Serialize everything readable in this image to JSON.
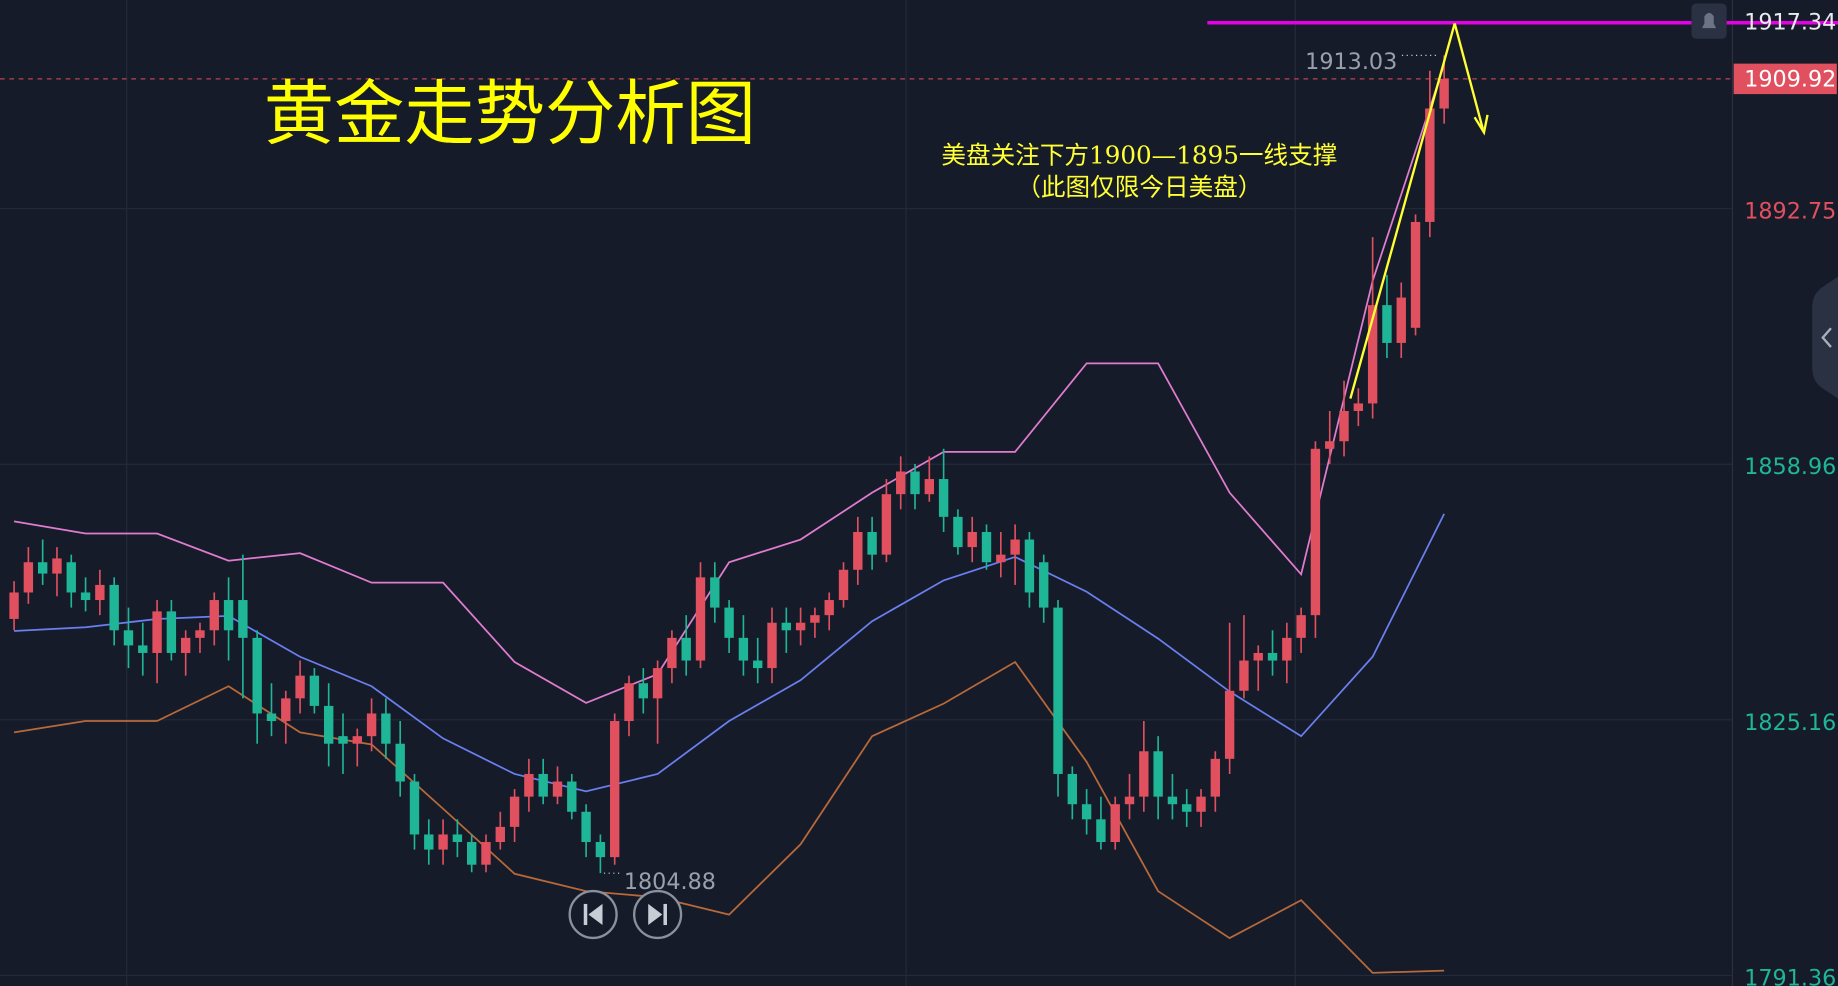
{
  "chart_data": {
    "type": "candlestick",
    "title": "黄金走势分析图",
    "annotations": [
      "美盘关注下方1900—1895一线支撑",
      "（此图仅限今日美盘）"
    ],
    "ylim": [
      1789.96,
      1920.35
    ],
    "yticks": [
      1791.36,
      1825.16,
      1858.96,
      1892.75
    ],
    "ytick_colors": [
      "#1fb597",
      "#1fb597",
      "#1fb597",
      "#e0505f"
    ],
    "grid": true,
    "up_color": "#e0505f",
    "down_color": "#1fb597",
    "candles": {
      "open": [
        1838.5,
        1842,
        1846,
        1844.5,
        1846,
        1842,
        1841,
        1843,
        1837,
        1835,
        1834,
        1839.5,
        1834,
        1836,
        1837,
        1841,
        1841,
        1836,
        1826,
        1825,
        1828,
        1831,
        1827,
        1823,
        1822,
        1823,
        1826,
        1822,
        1817,
        1810,
        1808,
        1810,
        1809,
        1806,
        1809,
        1811,
        1815,
        1818,
        1815,
        1817,
        1813,
        1809,
        1807,
        1825,
        1830,
        1828,
        1832,
        1836,
        1833,
        1844,
        1840,
        1836,
        1833,
        1832,
        1838,
        1837,
        1838,
        1839,
        1841,
        1845,
        1850,
        1847,
        1855,
        1858,
        1855,
        1857,
        1852,
        1848,
        1850,
        1846,
        1847,
        1849,
        1846,
        1840,
        1818,
        1814,
        1812,
        1809,
        1814,
        1815,
        1821,
        1815,
        1814,
        1813,
        1815,
        1820,
        1829,
        1833,
        1834,
        1833,
        1836,
        1839,
        1861,
        1862,
        1866,
        1867,
        1880,
        1875,
        1877,
        1891,
        1906
      ],
      "high": [
        1843.5,
        1848,
        1849,
        1848,
        1847,
        1844,
        1845,
        1844,
        1840,
        1838,
        1841,
        1841,
        1837,
        1838,
        1842,
        1844,
        1847,
        1837,
        1830,
        1829,
        1833,
        1832,
        1830,
        1826,
        1824,
        1828,
        1828,
        1825,
        1818,
        1812,
        1812,
        1812,
        1810,
        1810,
        1813,
        1816,
        1820,
        1820,
        1819,
        1818,
        1814,
        1810,
        1826,
        1831,
        1832,
        1833,
        1837,
        1839,
        1846,
        1846,
        1841,
        1839,
        1836,
        1840,
        1840,
        1840,
        1840,
        1842,
        1846,
        1852,
        1852,
        1857,
        1860,
        1859,
        1860,
        1861,
        1853,
        1852,
        1851,
        1850,
        1851,
        1850,
        1847,
        1841,
        1819,
        1816,
        1815,
        1815,
        1818,
        1825,
        1823,
        1818,
        1816,
        1816,
        1821,
        1838,
        1839,
        1835,
        1837,
        1838,
        1840,
        1862,
        1866,
        1870,
        1869,
        1889,
        1884,
        1883,
        1892,
        1911,
        1913.03
      ],
      "low": [
        1837,
        1840.5,
        1843,
        1841.5,
        1840,
        1839.5,
        1839,
        1835,
        1832,
        1831,
        1830,
        1833,
        1831,
        1834,
        1835,
        1833,
        1828,
        1822,
        1823,
        1822,
        1826,
        1826,
        1819,
        1818,
        1819,
        1821,
        1820,
        1815,
        1808,
        1806,
        1806,
        1807,
        1805,
        1805,
        1808,
        1809,
        1813,
        1814,
        1814,
        1812,
        1807,
        1804.88,
        1806,
        1823,
        1826,
        1822,
        1830,
        1831,
        1832,
        1838,
        1834,
        1831,
        1830,
        1830,
        1834,
        1835,
        1836,
        1837,
        1840,
        1843,
        1845,
        1846,
        1853,
        1853,
        1854,
        1850,
        1847,
        1846,
        1845,
        1844,
        1843,
        1840,
        1838,
        1815,
        1812,
        1810,
        1808,
        1808,
        1812,
        1813,
        1812,
        1812,
        1811,
        1811,
        1813,
        1818,
        1828,
        1829,
        1831,
        1830,
        1834,
        1836,
        1859,
        1860,
        1864,
        1865,
        1873,
        1873,
        1876,
        1889,
        1904
      ],
      "close": [
        1842,
        1846,
        1844.5,
        1846.5,
        1842,
        1841,
        1843,
        1837,
        1835,
        1834,
        1839.5,
        1834,
        1836,
        1837,
        1841,
        1837,
        1836,
        1826,
        1825,
        1828,
        1831,
        1827,
        1822,
        1822,
        1823,
        1826,
        1822,
        1817,
        1810,
        1808,
        1810,
        1809,
        1806,
        1809,
        1811,
        1815,
        1818,
        1815,
        1817,
        1813,
        1809,
        1807,
        1825,
        1830,
        1828,
        1832,
        1836,
        1833,
        1844,
        1840,
        1836,
        1833,
        1832,
        1838,
        1837,
        1838,
        1839,
        1841,
        1845,
        1850,
        1847,
        1855,
        1858,
        1855,
        1857,
        1852,
        1848,
        1850,
        1846,
        1847,
        1849,
        1842,
        1840,
        1818,
        1814,
        1812,
        1809,
        1814,
        1815,
        1821,
        1815,
        1814,
        1813,
        1815,
        1820,
        1829,
        1833,
        1834,
        1833,
        1836,
        1839,
        1861,
        1862,
        1866,
        1867,
        1880,
        1875,
        1881,
        1891,
        1906,
        1909.92
      ]
    },
    "bands": {
      "index": [
        0,
        5,
        10,
        15,
        20,
        25,
        30,
        35,
        40,
        45,
        50,
        55,
        60,
        65,
        70,
        75,
        80,
        85,
        90,
        95,
        100
      ],
      "series": [
        {
          "color": "#e07cd0",
          "values": [
            1851.4,
            1849.8,
            1849.8,
            1846.2,
            1847.2,
            1843.3,
            1843.3,
            1832.8,
            1827.4,
            1831.2,
            1846.0,
            1849.0,
            1855.2,
            1860.6,
            1860.6,
            1872.3,
            1872.3,
            1855.2,
            1844.4,
            1883.2,
            1911.8
          ]
        },
        {
          "color": "#6a7ff0",
          "values": [
            1836.9,
            1837.4,
            1838.5,
            1838.9,
            1833.5,
            1829.6,
            1822.7,
            1818.0,
            1815.7,
            1818.0,
            1825.0,
            1830.4,
            1838.2,
            1843.6,
            1846.7,
            1842.1,
            1835.9,
            1828.9,
            1823.0,
            1833.5,
            1852.4
          ]
        },
        {
          "color": "#b8693a",
          "values": [
            1823.5,
            1825.0,
            1825.0,
            1829.6,
            1823.5,
            1821.9,
            1813.4,
            1804.8,
            1802.5,
            1801.7,
            1799.4,
            1808.7,
            1823.0,
            1827.3,
            1832.8,
            1819.6,
            1802.5,
            1796.3,
            1801.3,
            1791.7,
            1792.0
          ]
        }
      ]
    },
    "last_price": {
      "value": 1909.92,
      "color": "#e0505f"
    },
    "hline": {
      "value": 1917.34,
      "color": "#e600e6"
    },
    "high_marker": {
      "value": 1913.03
    },
    "low_marker": {
      "value": 1804.88
    }
  }
}
